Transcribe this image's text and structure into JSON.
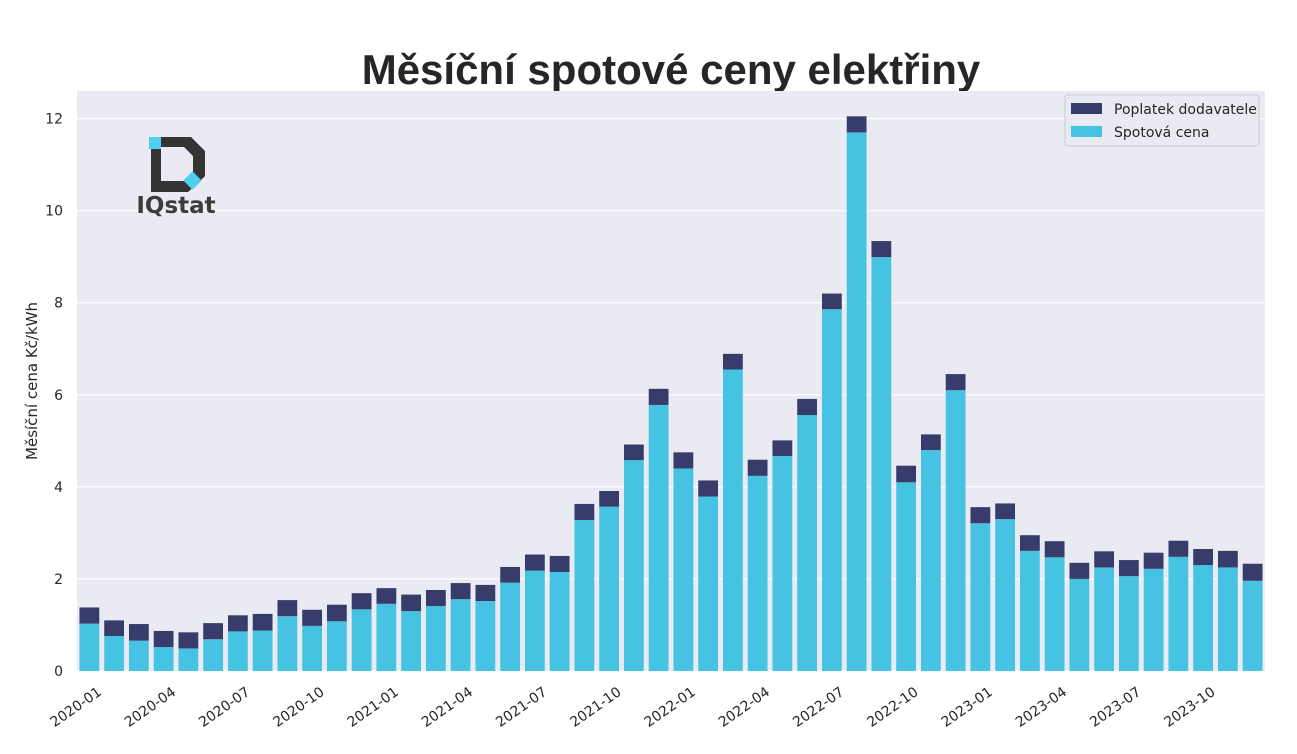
{
  "logo": {
    "text": "IQstat"
  },
  "colors": {
    "fee": "#383c6b",
    "spot": "#46c3e2",
    "plot_bg": "#eaeaf2",
    "grid": "#ffffff"
  },
  "chart_data": {
    "type": "bar",
    "stacked": true,
    "title": "Měsíční spotové ceny elektřiny",
    "xlabel": "",
    "ylabel": "Měsíční cena Kč/kWh",
    "ylim": [
      0,
      12.6
    ],
    "yticks": [
      0,
      2,
      4,
      6,
      8,
      10,
      12
    ],
    "grid": true,
    "legend_position": "top-right",
    "categories": [
      "2020-01",
      "2020-02",
      "2020-03",
      "2020-04",
      "2020-05",
      "2020-06",
      "2020-07",
      "2020-08",
      "2020-09",
      "2020-10",
      "2020-11",
      "2020-12",
      "2021-01",
      "2021-02",
      "2021-03",
      "2021-04",
      "2021-05",
      "2021-06",
      "2021-07",
      "2021-08",
      "2021-09",
      "2021-10",
      "2021-11",
      "2021-12",
      "2022-01",
      "2022-02",
      "2022-03",
      "2022-04",
      "2022-05",
      "2022-06",
      "2022-07",
      "2022-08",
      "2022-09",
      "2022-10",
      "2022-11",
      "2022-12",
      "2023-01",
      "2023-02",
      "2023-03",
      "2023-04",
      "2023-05",
      "2023-06",
      "2023-07",
      "2023-08",
      "2023-09",
      "2023-10",
      "2023-11",
      "2023-12"
    ],
    "xtick_labels": [
      "2020-01",
      "2020-04",
      "2020-07",
      "2020-10",
      "2021-01",
      "2021-04",
      "2021-07",
      "2021-10",
      "2022-01",
      "2022-04",
      "2022-07",
      "2022-10",
      "2023-01",
      "2023-04",
      "2023-07",
      "2023-10"
    ],
    "series": [
      {
        "name": "Spotová cena",
        "values": [
          1.03,
          0.76,
          0.66,
          0.52,
          0.49,
          0.69,
          0.86,
          0.88,
          1.19,
          0.98,
          1.08,
          1.34,
          1.46,
          1.3,
          1.41,
          1.56,
          1.52,
          1.92,
          2.18,
          2.15,
          3.28,
          3.57,
          4.58,
          5.78,
          4.4,
          3.79,
          6.55,
          4.24,
          4.67,
          5.56,
          7.86,
          11.7,
          8.99,
          4.1,
          4.8,
          6.1,
          3.21,
          3.3,
          2.61,
          2.47,
          2.0,
          2.25,
          2.06,
          2.22,
          2.48,
          2.3,
          2.25,
          1.96
        ]
      },
      {
        "name": "Poplatek dodavatele",
        "values": [
          0.35,
          0.34,
          0.36,
          0.35,
          0.35,
          0.35,
          0.35,
          0.36,
          0.35,
          0.35,
          0.36,
          0.35,
          0.34,
          0.36,
          0.35,
          0.35,
          0.35,
          0.34,
          0.35,
          0.35,
          0.35,
          0.34,
          0.34,
          0.35,
          0.35,
          0.35,
          0.34,
          0.35,
          0.34,
          0.35,
          0.34,
          0.35,
          0.35,
          0.36,
          0.34,
          0.35,
          0.35,
          0.34,
          0.34,
          0.35,
          0.35,
          0.35,
          0.35,
          0.35,
          0.35,
          0.35,
          0.36,
          0.37
        ]
      }
    ]
  }
}
